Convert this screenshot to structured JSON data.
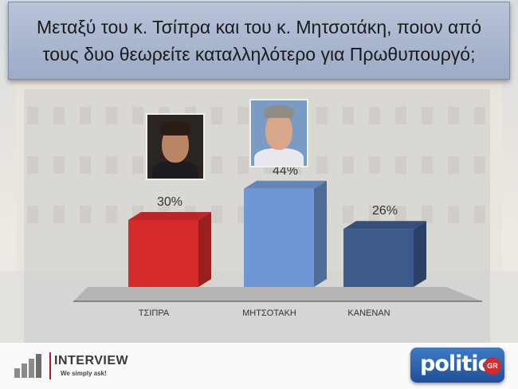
{
  "title": "Μεταξύ του κ. Τσίπρα και του κ. Μητσοτάκη, ποιον από τους δυο θεωρείτε καταλληλότερο για Πρωθυπουργό;",
  "chart_data": {
    "type": "bar",
    "title": "Μεταξύ του κ. Τσίπρα και του κ. Μητσοτάκη, ποιον από τους δυο θεωρείτε καταλληλότερο για Πρωθυπουργό;",
    "categories": [
      "ΤΣΙΠΡΑ",
      "ΜΗΤΣΟΤΑΚΗ",
      "ΚΑΝΕΝΑΝ"
    ],
    "values": [
      30,
      44,
      26
    ],
    "value_labels": [
      "30%",
      "44%",
      "26%"
    ],
    "unit": "%",
    "ylim": [
      0,
      50
    ],
    "grid": false,
    "legend": "none",
    "colors": [
      "#d62b2b",
      "#6f97d6",
      "#3c5a8c"
    ]
  },
  "footer": {
    "interview_logo": "INTERVIEW",
    "interview_tagline": "We simply ask!",
    "politic_logo": "politic",
    "politic_badge": "GR"
  },
  "icons": {
    "tsipras_photo": "portrait-photo",
    "mitsotakis_photo": "portrait-photo"
  }
}
